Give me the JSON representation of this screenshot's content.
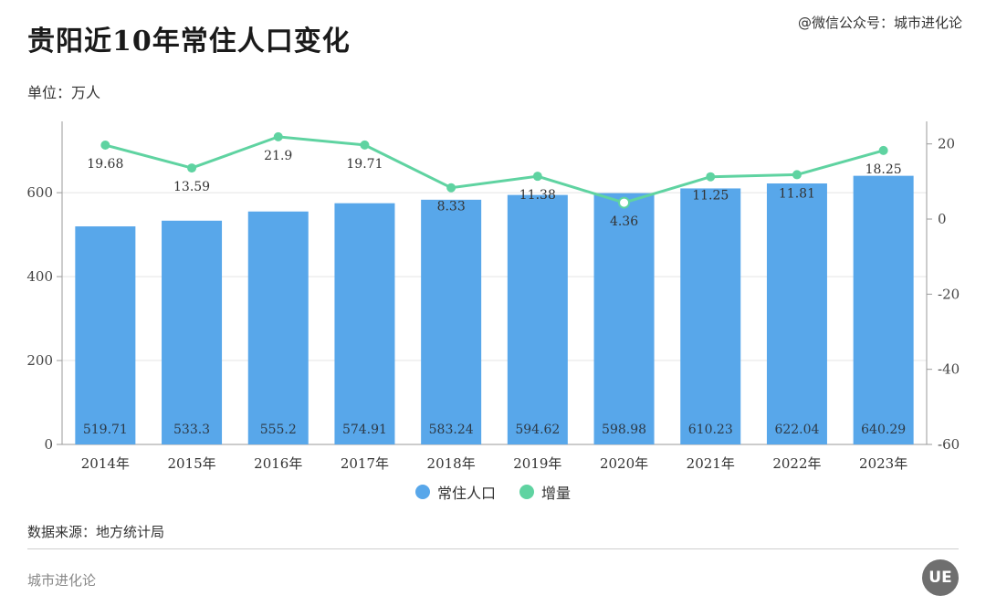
{
  "header": {
    "title": "贵阳近10年常住人口变化",
    "wechat": "@微信公众号：城市进化论",
    "unit": "单位：万人"
  },
  "chart_data": {
    "type": "bar",
    "categories": [
      "2014年",
      "2015年",
      "2016年",
      "2017年",
      "2018年",
      "2019年",
      "2020年",
      "2021年",
      "2022年",
      "2023年"
    ],
    "series": [
      {
        "name": "常住人口",
        "type": "bar",
        "axis": "left",
        "color": "#58a7ea",
        "values": [
          519.71,
          533.3,
          555.2,
          574.91,
          583.24,
          594.62,
          598.98,
          610.23,
          622.04,
          640.29
        ],
        "labels": [
          "519.71",
          "533.3",
          "555.2",
          "574.91",
          "583.24",
          "594.62",
          "598.98",
          "610.23",
          "622.04",
          "640.29"
        ]
      },
      {
        "name": "增量",
        "type": "line",
        "axis": "right",
        "color": "#5fd3a1",
        "values": [
          19.68,
          13.59,
          21.9,
          19.71,
          8.33,
          11.38,
          4.36,
          11.25,
          11.81,
          18.25
        ],
        "labels": [
          "19.68",
          "13.59",
          "21.9",
          "19.71",
          "8.33",
          "11.38",
          "4.36",
          "11.25",
          "11.81",
          "18.25"
        ]
      }
    ],
    "y_left": {
      "min": 0,
      "max": 770,
      "ticks": [
        "0",
        "200",
        "400",
        "600"
      ]
    },
    "y_right": {
      "min": -60,
      "max": 26,
      "ticks": [
        "-60",
        "-40",
        "-20",
        "0",
        "20"
      ]
    },
    "grid": true,
    "legend": "bottom-center"
  },
  "footer": {
    "source": "数据来源：地方统计局",
    "brand": "城市进化论",
    "logo": "UE"
  }
}
